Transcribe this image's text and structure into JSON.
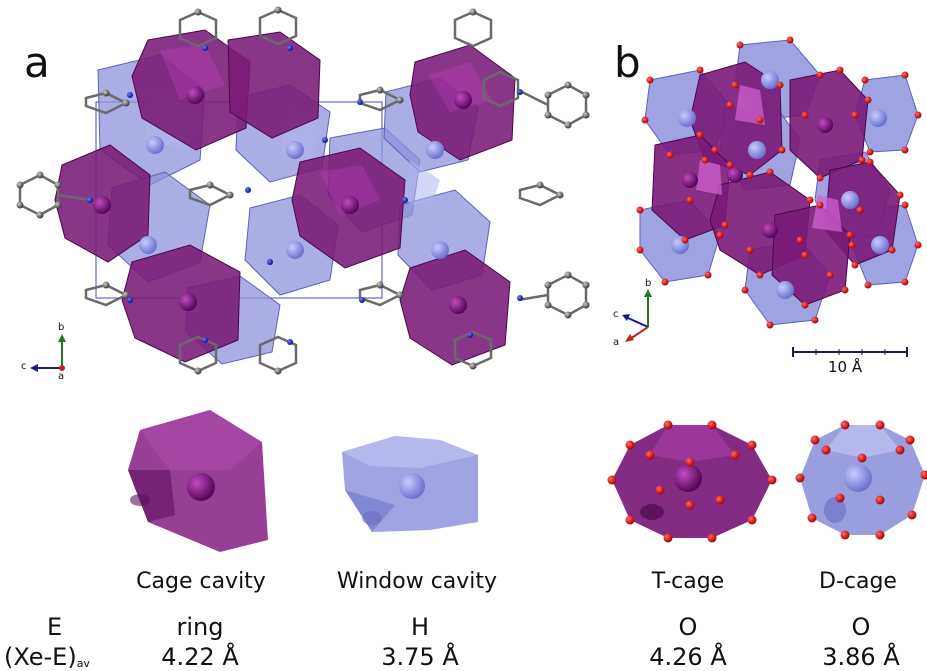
{
  "panels": {
    "a": {
      "letter": "a",
      "axes": {
        "b": "b",
        "c": "c",
        "a": "a"
      }
    },
    "b": {
      "letter": "b",
      "axes": {
        "b": "b",
        "c": "c",
        "a": "a"
      },
      "scale_bar": "10 Å"
    }
  },
  "cavities": [
    {
      "name": "Cage cavity",
      "element": "ring",
      "distance": "4.22 Å"
    },
    {
      "name": "Window cavity",
      "element": "H",
      "distance": "3.75 Å"
    },
    {
      "name": "T-cage",
      "element": "O",
      "distance": "4.26 Å"
    },
    {
      "name": "D-cage",
      "element": "O",
      "distance": "3.86 Å"
    }
  ],
  "row_labels": {
    "element": "E",
    "distance_main": "(Xe-E)",
    "distance_sub": "av"
  },
  "colors": {
    "purple": "#7a1a78",
    "lavender": "#8e93dc",
    "oxygen": "#dd1010",
    "nitrogen": "#1020c0",
    "carbon": "#555555"
  }
}
